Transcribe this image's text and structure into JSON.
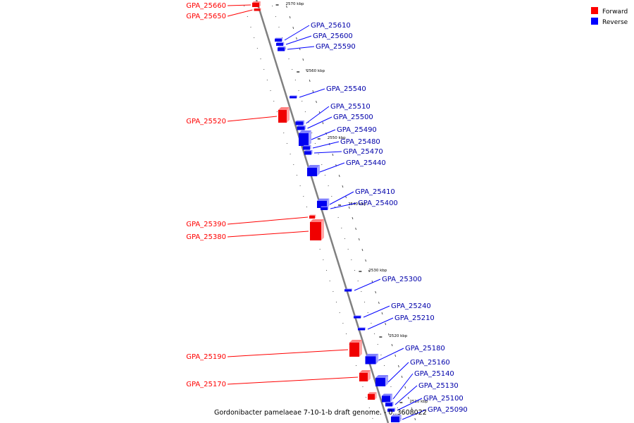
{
  "caption": "Gordonibacter pamelaeae 7-10-1-b draft genome. - 0..3608022",
  "legend": [
    {
      "label": "Forward",
      "color": "#ff0000"
    },
    {
      "label": "Reverse",
      "color": "#0000ff"
    }
  ],
  "ticks": [
    "2570 kbp",
    "2560 kbp",
    "2550 kbp",
    "2540 kbp",
    "2530 kbp",
    "2520 kbp",
    "2510 kbp"
  ],
  "forward_genes": [
    "GPA_25660",
    "GPA_25650",
    "GPA_25520",
    "GPA_25390",
    "GPA_25380",
    "GPA_25190",
    "GPA_25170"
  ],
  "reverse_genes": [
    "GPA_25610",
    "GPA_25600",
    "GPA_25590",
    "GPA_25540",
    "GPA_25510",
    "GPA_25500",
    "GPA_25490",
    "GPA_25480",
    "GPA_25470",
    "GPA_25440",
    "GPA_25410",
    "GPA_25400",
    "GPA_25300",
    "GPA_25240",
    "GPA_25210",
    "GPA_25180",
    "GPA_25160",
    "GPA_25140",
    "GPA_25130",
    "GPA_25100",
    "GPA_25090"
  ]
}
